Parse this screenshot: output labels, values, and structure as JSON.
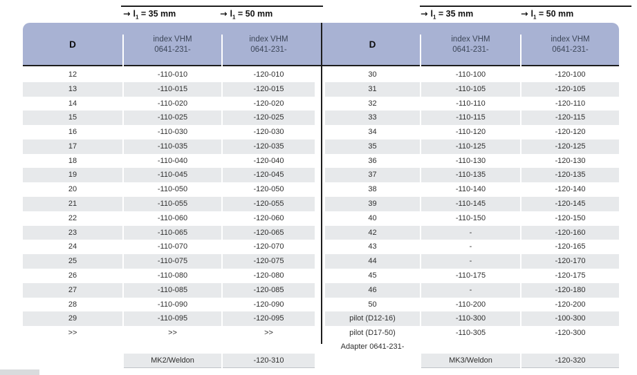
{
  "colors": {
    "header_bg": "#a8b2d3",
    "header_text": "#3c4658",
    "stripe": "#e7e9eb",
    "rule": "#1c1c1c",
    "body_text": "#2e2e2e"
  },
  "length_headers": {
    "arrow": "→",
    "symbol": "l",
    "sub": "1",
    "l35_value": "= 35 mm",
    "l50_value": "= 50 mm"
  },
  "column_headers": {
    "d": "D",
    "index_line1": "index VHM",
    "index_line2": "0641-231-"
  },
  "left_table": {
    "rows": [
      [
        "12",
        "-110-010",
        "-120-010"
      ],
      [
        "13",
        "-110-015",
        "-120-015"
      ],
      [
        "14",
        "-110-020",
        "-120-020"
      ],
      [
        "15",
        "-110-025",
        "-120-025"
      ],
      [
        "16",
        "-110-030",
        "-120-030"
      ],
      [
        "17",
        "-110-035",
        "-120-035"
      ],
      [
        "18",
        "-110-040",
        "-120-040"
      ],
      [
        "19",
        "-110-045",
        "-120-045"
      ],
      [
        "20",
        "-110-050",
        "-120-050"
      ],
      [
        "21",
        "-110-055",
        "-120-055"
      ],
      [
        "22",
        "-110-060",
        "-120-060"
      ],
      [
        "23",
        "-110-065",
        "-120-065"
      ],
      [
        "24",
        "-110-070",
        "-120-070"
      ],
      [
        "25",
        "-110-075",
        "-120-075"
      ],
      [
        "26",
        "-110-080",
        "-120-080"
      ],
      [
        "27",
        "-110-085",
        "-120-085"
      ],
      [
        "28",
        "-110-090",
        "-120-090"
      ],
      [
        "29",
        "-110-095",
        "-120-095"
      ],
      [
        ">>",
        ">>",
        ">>"
      ]
    ],
    "weldon_label": "MK2/Weldon",
    "weldon_code": "-120-310"
  },
  "right_table": {
    "rows": [
      [
        "30",
        "-110-100",
        "-120-100"
      ],
      [
        "31",
        "-110-105",
        "-120-105"
      ],
      [
        "32",
        "-110-110",
        "-120-110"
      ],
      [
        "33",
        "-110-115",
        "-120-115"
      ],
      [
        "34",
        "-110-120",
        "-120-120"
      ],
      [
        "35",
        "-110-125",
        "-120-125"
      ],
      [
        "36",
        "-110-130",
        "-120-130"
      ],
      [
        "37",
        "-110-135",
        "-120-135"
      ],
      [
        "38",
        "-110-140",
        "-120-140"
      ],
      [
        "39",
        "-110-145",
        "-120-145"
      ],
      [
        "40",
        "-110-150",
        "-120-150"
      ],
      [
        "42",
        "-",
        "-120-160"
      ],
      [
        "43",
        "-",
        "-120-165"
      ],
      [
        "44",
        "-",
        "-120-170"
      ],
      [
        "45",
        "-110-175",
        "-120-175"
      ],
      [
        "46",
        "-",
        "-120-180"
      ],
      [
        "50",
        "-110-200",
        "-120-200"
      ],
      [
        "pilot (D12-16)",
        "-110-300",
        "-100-300"
      ],
      [
        "pilot (D17-50)",
        "-110-305",
        "-120-300"
      ]
    ],
    "adapter_label": "Adapter 0641-231-",
    "weldon_label": "MK3/Weldon",
    "weldon_code": "-120-320"
  }
}
